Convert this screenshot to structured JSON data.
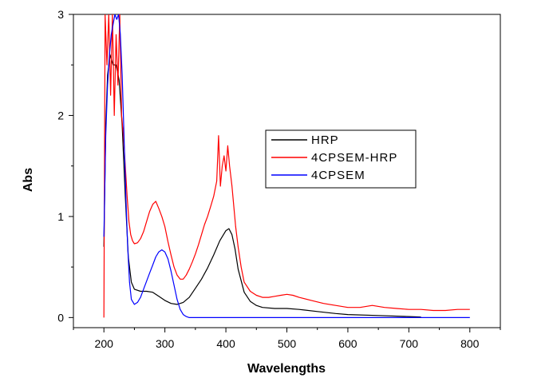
{
  "chart_data": {
    "type": "line",
    "title": "",
    "xlabel": "Wavelengths",
    "ylabel": "Abs",
    "xlim": [
      150,
      850
    ],
    "ylim": [
      -0.1,
      3.0
    ],
    "xticks": [
      200,
      300,
      400,
      500,
      600,
      700,
      800
    ],
    "yticks": [
      0,
      1,
      2,
      3
    ],
    "x_tick_labels": [
      "200",
      "300",
      "400",
      "500",
      "600",
      "700",
      "800"
    ],
    "y_tick_labels": [
      "0",
      "1",
      "2",
      "3"
    ],
    "grid": false,
    "legend_position": "center-right",
    "legend": [
      "HRP",
      "4CPSEM-HRP",
      "4CPSEM"
    ],
    "series": [
      {
        "name": "HRP",
        "color": "#000000",
        "points": [
          [
            200,
            0.7
          ],
          [
            203,
            1.9
          ],
          [
            206,
            2.4
          ],
          [
            210,
            2.6
          ],
          [
            215,
            2.5
          ],
          [
            220,
            2.5
          ],
          [
            225,
            2.35
          ],
          [
            230,
            1.9
          ],
          [
            235,
            1.2
          ],
          [
            240,
            0.6
          ],
          [
            245,
            0.35
          ],
          [
            250,
            0.28
          ],
          [
            260,
            0.26
          ],
          [
            270,
            0.26
          ],
          [
            280,
            0.25
          ],
          [
            290,
            0.21
          ],
          [
            300,
            0.17
          ],
          [
            310,
            0.14
          ],
          [
            320,
            0.13
          ],
          [
            330,
            0.15
          ],
          [
            340,
            0.2
          ],
          [
            350,
            0.29
          ],
          [
            360,
            0.38
          ],
          [
            370,
            0.49
          ],
          [
            380,
            0.62
          ],
          [
            390,
            0.76
          ],
          [
            400,
            0.86
          ],
          [
            405,
            0.88
          ],
          [
            410,
            0.82
          ],
          [
            415,
            0.68
          ],
          [
            420,
            0.48
          ],
          [
            430,
            0.25
          ],
          [
            440,
            0.16
          ],
          [
            450,
            0.12
          ],
          [
            460,
            0.1
          ],
          [
            480,
            0.09
          ],
          [
            500,
            0.09
          ],
          [
            520,
            0.08
          ],
          [
            550,
            0.06
          ],
          [
            580,
            0.04
          ],
          [
            600,
            0.03
          ],
          [
            650,
            0.02
          ],
          [
            700,
            0.01
          ],
          [
            720,
            0.005
          ]
        ]
      },
      {
        "name": "4CPSEM-HRP",
        "color": "#ff0000",
        "points": [
          [
            200,
            0.0
          ],
          [
            202,
            3.0
          ],
          [
            205,
            2.5
          ],
          [
            208,
            3.0
          ],
          [
            211,
            2.2
          ],
          [
            214,
            3.0
          ],
          [
            217,
            2.0
          ],
          [
            220,
            2.8
          ],
          [
            223,
            2.3
          ],
          [
            226,
            3.0
          ],
          [
            229,
            2.0
          ],
          [
            232,
            1.8
          ],
          [
            235,
            1.5
          ],
          [
            238,
            1.2
          ],
          [
            241,
            0.95
          ],
          [
            244,
            0.82
          ],
          [
            247,
            0.76
          ],
          [
            250,
            0.73
          ],
          [
            255,
            0.74
          ],
          [
            260,
            0.78
          ],
          [
            265,
            0.85
          ],
          [
            270,
            0.95
          ],
          [
            275,
            1.05
          ],
          [
            280,
            1.12
          ],
          [
            285,
            1.15
          ],
          [
            290,
            1.08
          ],
          [
            295,
            1.0
          ],
          [
            300,
            0.9
          ],
          [
            305,
            0.75
          ],
          [
            310,
            0.62
          ],
          [
            315,
            0.5
          ],
          [
            320,
            0.42
          ],
          [
            325,
            0.38
          ],
          [
            330,
            0.38
          ],
          [
            335,
            0.42
          ],
          [
            340,
            0.48
          ],
          [
            345,
            0.55
          ],
          [
            350,
            0.63
          ],
          [
            355,
            0.72
          ],
          [
            360,
            0.82
          ],
          [
            365,
            0.92
          ],
          [
            370,
            1.0
          ],
          [
            375,
            1.1
          ],
          [
            380,
            1.2
          ],
          [
            385,
            1.35
          ],
          [
            388,
            1.8
          ],
          [
            391,
            1.3
          ],
          [
            394,
            1.5
          ],
          [
            397,
            1.6
          ],
          [
            400,
            1.45
          ],
          [
            403,
            1.7
          ],
          [
            406,
            1.5
          ],
          [
            410,
            1.3
          ],
          [
            413,
            1.1
          ],
          [
            416,
            0.9
          ],
          [
            420,
            0.7
          ],
          [
            425,
            0.5
          ],
          [
            430,
            0.35
          ],
          [
            440,
            0.26
          ],
          [
            450,
            0.22
          ],
          [
            460,
            0.2
          ],
          [
            470,
            0.2
          ],
          [
            480,
            0.21
          ],
          [
            490,
            0.22
          ],
          [
            500,
            0.23
          ],
          [
            510,
            0.22
          ],
          [
            520,
            0.2
          ],
          [
            540,
            0.17
          ],
          [
            560,
            0.14
          ],
          [
            580,
            0.12
          ],
          [
            600,
            0.1
          ],
          [
            620,
            0.1
          ],
          [
            640,
            0.12
          ],
          [
            660,
            0.1
          ],
          [
            680,
            0.09
          ],
          [
            700,
            0.08
          ],
          [
            720,
            0.08
          ],
          [
            740,
            0.07
          ],
          [
            760,
            0.07
          ],
          [
            780,
            0.08
          ],
          [
            800,
            0.08
          ]
        ]
      },
      {
        "name": "4CPSEM",
        "color": "#0000ff",
        "points": [
          [
            200,
            0.8
          ],
          [
            203,
            1.8
          ],
          [
            206,
            2.3
          ],
          [
            209,
            2.6
          ],
          [
            212,
            2.8
          ],
          [
            215,
            2.9
          ],
          [
            218,
            3.0
          ],
          [
            221,
            2.95
          ],
          [
            224,
            3.0
          ],
          [
            227,
            2.8
          ],
          [
            230,
            2.4
          ],
          [
            233,
            1.8
          ],
          [
            236,
            1.2
          ],
          [
            239,
            0.7
          ],
          [
            242,
            0.35
          ],
          [
            245,
            0.18
          ],
          [
            250,
            0.13
          ],
          [
            255,
            0.15
          ],
          [
            260,
            0.2
          ],
          [
            265,
            0.28
          ],
          [
            270,
            0.36
          ],
          [
            275,
            0.44
          ],
          [
            280,
            0.52
          ],
          [
            285,
            0.6
          ],
          [
            290,
            0.65
          ],
          [
            295,
            0.67
          ],
          [
            300,
            0.65
          ],
          [
            305,
            0.58
          ],
          [
            310,
            0.46
          ],
          [
            315,
            0.32
          ],
          [
            320,
            0.18
          ],
          [
            325,
            0.08
          ],
          [
            330,
            0.03
          ],
          [
            335,
            0.01
          ],
          [
            340,
            0.0
          ],
          [
            400,
            0.0
          ],
          [
            500,
            0.0
          ],
          [
            600,
            0.0
          ],
          [
            700,
            0.0
          ],
          [
            800,
            0.0
          ]
        ]
      }
    ]
  }
}
